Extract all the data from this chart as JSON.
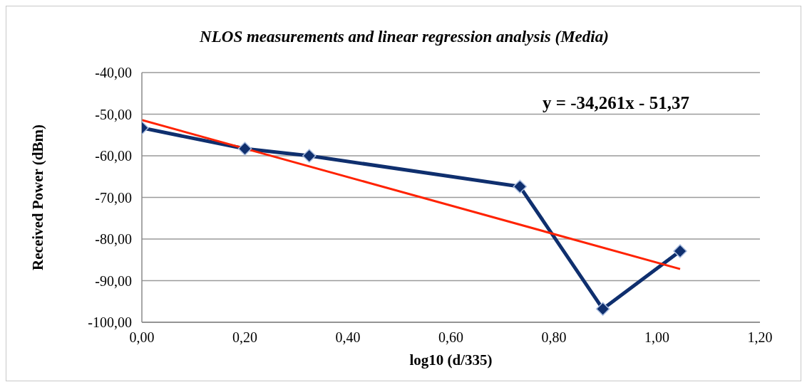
{
  "chart_data": {
    "type": "line",
    "title": "NLOS measurements and linear regression analysis (Media)",
    "xlabel": "log10 (d/335)",
    "ylabel": "Received Power (dBm)",
    "xlim": [
      0,
      1.2
    ],
    "xticks": [
      {
        "value": 0,
        "label": "0,00"
      },
      {
        "value": 0.2,
        "label": "0,20"
      },
      {
        "value": 0.4,
        "label": "0,40"
      },
      {
        "value": 0.6,
        "label": "0,60"
      },
      {
        "value": 0.8,
        "label": "0,80"
      },
      {
        "value": 1.0,
        "label": "1,00"
      },
      {
        "value": 1.2,
        "label": "1,20"
      }
    ],
    "ylim": [
      -100,
      -40
    ],
    "yticks": [
      {
        "value": -100,
        "label": "-100,00"
      },
      {
        "value": -90,
        "label": "-90,00"
      },
      {
        "value": -80,
        "label": "-80,00"
      },
      {
        "value": -70,
        "label": "-70,00"
      },
      {
        "value": -60,
        "label": "-60,00"
      },
      {
        "value": -50,
        "label": "-50,00"
      },
      {
        "value": -40,
        "label": "-40,00"
      }
    ],
    "grid": "y",
    "line_style": "solid",
    "series": [
      {
        "type": "line",
        "color": "#0f2f6e",
        "marker": "diamond",
        "x": [
          0,
          0.2,
          0.325,
          0.734,
          0.895,
          1.045
        ],
        "values": [
          -53.3,
          -58.3,
          -60.0,
          -67.4,
          -96.8,
          -82.9
        ]
      },
      {
        "type": "line",
        "color": "#ff2200",
        "marker": "none",
        "x": [
          0,
          1.045
        ],
        "values": [
          -51.4,
          -87.2
        ]
      }
    ],
    "annotations": [
      "y = -34,261x - 51,37"
    ]
  }
}
